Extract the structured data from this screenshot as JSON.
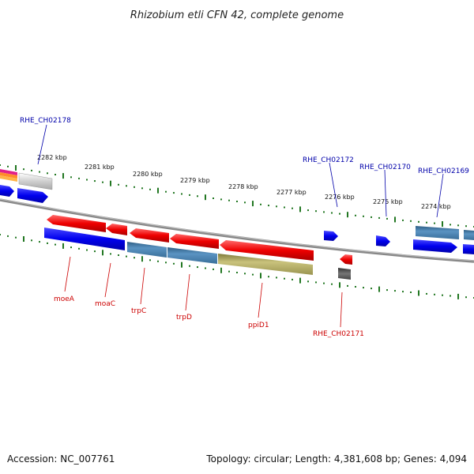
{
  "title": "Rhizobium etli CFN 42, complete genome",
  "footer": {
    "accession": "Accession: NC_007761",
    "topology": "Topology: circular; Length: 4,381,608 bp; Genes: 4,094"
  },
  "colors": {
    "top_label": "#0000aa",
    "bottom_label": "#cc0000",
    "tick": "#227722",
    "backbone": "#888888"
  },
  "kbp_labels": [
    "2282 kbp",
    "2281 kbp",
    "2280 kbp",
    "2279 kbp",
    "2278 kbp",
    "2277 kbp",
    "2276 kbp",
    "2275 kbp",
    "2274 kbp"
  ],
  "top_gene_labels": [
    "RHE_CH02178",
    "RHE_CH02172",
    "RHE_CH02170",
    "RHE_CH02169"
  ],
  "bottom_gene_labels": [
    "moeA",
    "moaC",
    "trpC",
    "trpD",
    "ppiD1",
    "RHE_CH02171"
  ]
}
